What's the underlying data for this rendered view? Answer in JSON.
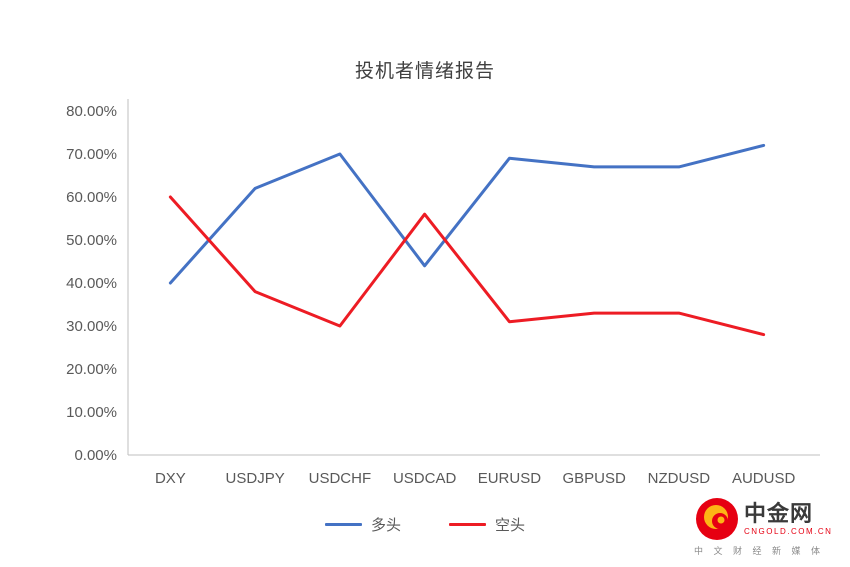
{
  "chart_data": {
    "type": "line",
    "title": "投机者情绪报告",
    "categories": [
      "DXY",
      "USDJPY",
      "USDCHF",
      "USDCAD",
      "EURUSD",
      "GBPUSD",
      "NZDUSD",
      "AUDUSD"
    ],
    "series": [
      {
        "name": "多头",
        "color": "#4472c4",
        "values": [
          40,
          62,
          70,
          44,
          69,
          67,
          67,
          72
        ]
      },
      {
        "name": "空头",
        "color": "#ed1c24",
        "values": [
          60,
          38,
          30,
          56,
          31,
          33,
          33,
          28
        ]
      }
    ],
    "xlabel": "",
    "ylabel": "",
    "ylim": [
      0,
      80
    ],
    "ytick_step": 10,
    "ytick_format": "percent_2dp",
    "grid": false,
    "legend_position": "bottom"
  },
  "legend": {
    "items": [
      {
        "label": "多头",
        "color": "#4472c4"
      },
      {
        "label": "空头",
        "color": "#ed1c24"
      }
    ]
  },
  "watermark": {
    "brand": "中金网",
    "domain": "CNGOLD.COM.CN",
    "tagline": "中 文 财 经 新 媒 体",
    "accent_color": "#e60012",
    "gold_color": "#fdb515"
  }
}
